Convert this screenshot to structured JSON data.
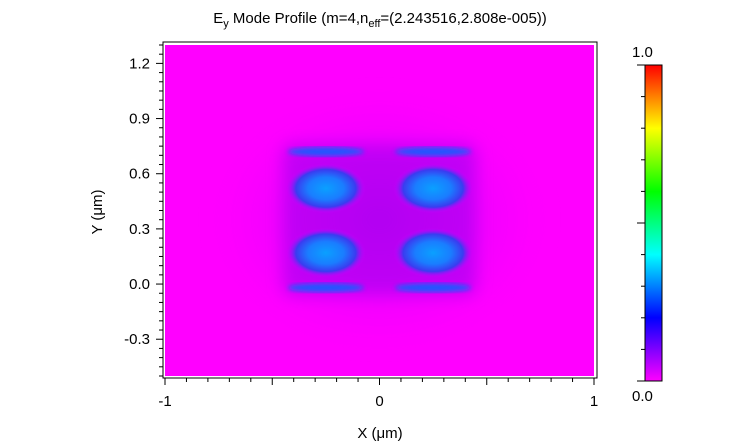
{
  "chart_data": {
    "type": "heatmap",
    "title": {
      "prefix": "E",
      "subscript": "y",
      "middle": " Mode Profile (m=4,n",
      "subscript2": "eff",
      "suffix": "=(2.243516,2.808e-005))"
    },
    "xlabel": "X (μm)",
    "ylabel": "Y (μm)",
    "xlim": [
      -1.0,
      1.0
    ],
    "ylim": [
      -0.5,
      1.3
    ],
    "x_ticks": [
      {
        "value": -1,
        "label": "-1"
      },
      {
        "value": 0,
        "label": "0"
      },
      {
        "value": 1,
        "label": "1"
      }
    ],
    "y_ticks": [
      {
        "value": -0.3,
        "label": "-0.3"
      },
      {
        "value": 0.0,
        "label": "0.0"
      },
      {
        "value": 0.3,
        "label": "0.3"
      },
      {
        "value": 0.6,
        "label": "0.6"
      },
      {
        "value": 0.9,
        "label": "0.9"
      },
      {
        "value": 1.2,
        "label": "1.2"
      }
    ],
    "colorbar": {
      "min_label": "0.0",
      "max_label": "1.0",
      "range": [
        0.0,
        1.0
      ],
      "colors": [
        "#ff00ff",
        "#7f00ff",
        "#0000ff",
        "#0080ff",
        "#00ffff",
        "#00ff80",
        "#00ff00",
        "#80ff00",
        "#ffff00",
        "#ff8000",
        "#ff0000"
      ]
    },
    "background_value": 0.0,
    "field_lobes": [
      {
        "x": -0.25,
        "y": 0.52,
        "value": 0.45
      },
      {
        "x": 0.25,
        "y": 0.52,
        "value": 0.45
      },
      {
        "x": -0.25,
        "y": 0.17,
        "value": 0.45
      },
      {
        "x": 0.25,
        "y": 0.17,
        "value": 0.45
      },
      {
        "x": -0.25,
        "y": 0.72,
        "value": 0.3
      },
      {
        "x": 0.25,
        "y": 0.72,
        "value": 0.3
      },
      {
        "x": -0.25,
        "y": -0.02,
        "value": 0.3
      },
      {
        "x": 0.25,
        "y": -0.02,
        "value": 0.3
      }
    ]
  }
}
